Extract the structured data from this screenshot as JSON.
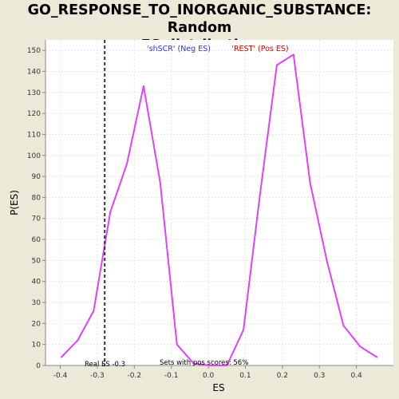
{
  "title_line1": "GO_RESPONSE_TO_INORGANIC_SUBSTANCE: Random",
  "title_line2": "ES distribution",
  "colors": {
    "background": "#ECE9D8",
    "plot_background": "#FFFFFF",
    "grid": "#E6E6E6",
    "series": "#E040FB",
    "neg_label": "#3333CC",
    "pos_label": "#CC0000",
    "real_es_line": "#333333"
  },
  "chart_data": {
    "type": "line",
    "title": "GO_RESPONSE_TO_INORGANIC_SUBSTANCE: Random ES distribution",
    "xlabel": "ES",
    "ylabel": "P(ES)",
    "xlim": [
      -0.44,
      0.5
    ],
    "ylim": [
      0,
      155
    ],
    "x_ticks": [
      -0.4,
      -0.3,
      -0.2,
      -0.1,
      0.0,
      0.1,
      0.2,
      0.3,
      0.4
    ],
    "x_tick_labels": [
      "-0.4",
      "-0.3",
      "-0.2",
      "-0.1",
      "0.0",
      "0.1",
      "0.2",
      "0.3",
      "0.4"
    ],
    "y_ticks": [
      0,
      10,
      20,
      30,
      40,
      50,
      60,
      70,
      80,
      90,
      100,
      110,
      120,
      130,
      140,
      150
    ],
    "y_tick_labels": [
      "0",
      "10",
      "20",
      "30",
      "40",
      "50",
      "60",
      "70",
      "80",
      "90",
      "100",
      "110",
      "120",
      "130",
      "140",
      "150"
    ],
    "grid": true,
    "series": [
      {
        "x": [
          -0.397,
          -0.353,
          -0.31,
          -0.265,
          -0.22,
          -0.175,
          -0.13,
          -0.085,
          -0.04,
          0.005,
          0.05,
          0.095,
          0.14,
          0.185,
          0.23,
          0.275,
          0.32,
          0.365,
          0.41,
          0.455
        ],
        "y": [
          4,
          12,
          26,
          73,
          96,
          133,
          87,
          10,
          1,
          0,
          0,
          17,
          82,
          143,
          148,
          87,
          50,
          19,
          9,
          4
        ]
      }
    ],
    "real_es": -0.28,
    "annotations": {
      "neg_label": "'shSCR' (Neg ES)",
      "pos_label": "'REST' (Pos ES)",
      "real_es_label": "Real ES -0.3",
      "pos_scores_label": "Sets with pos scores: 56%"
    }
  }
}
